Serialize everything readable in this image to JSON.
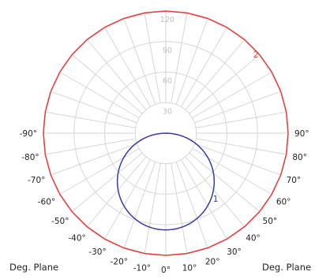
{
  "chart_data": {
    "type": "polar",
    "title": "",
    "radial_axis": {
      "min": 0,
      "max": 120,
      "rings": [
        30,
        60,
        90,
        120
      ],
      "ring_labels": [
        "30",
        "60",
        "90",
        "120"
      ],
      "inner_dead_zone": 30
    },
    "angle_ticks": [
      {
        "deg": -90,
        "label": "-90°"
      },
      {
        "deg": -80,
        "label": "-80°"
      },
      {
        "deg": -70,
        "label": "-70°"
      },
      {
        "deg": -60,
        "label": "-60°"
      },
      {
        "deg": -50,
        "label": "-50°"
      },
      {
        "deg": -40,
        "label": "-40°"
      },
      {
        "deg": -30,
        "label": "-30°"
      },
      {
        "deg": -20,
        "label": "-20°"
      },
      {
        "deg": -10,
        "label": "-10°"
      },
      {
        "deg": 0,
        "label": "0°"
      },
      {
        "deg": 10,
        "label": "10°"
      },
      {
        "deg": 20,
        "label": "20°"
      },
      {
        "deg": 30,
        "label": "30°"
      },
      {
        "deg": 40,
        "label": "40°"
      },
      {
        "deg": 50,
        "label": "50°"
      },
      {
        "deg": 60,
        "label": "60°"
      },
      {
        "deg": 70,
        "label": "70°"
      },
      {
        "deg": 80,
        "label": "80°"
      },
      {
        "deg": 90,
        "label": "90°"
      }
    ],
    "plane_labels": {
      "left": "Deg. Plane",
      "right": "Deg. Plane"
    },
    "series": [
      {
        "name": "1",
        "color": "#3a3aa8",
        "shape": "cosine",
        "peak_value": 95,
        "peak_angle": 0,
        "label_angle": 36
      },
      {
        "name": "2",
        "color": "#e83a3a",
        "shape": "constant",
        "value": 120,
        "label_angle": 130
      }
    ]
  }
}
